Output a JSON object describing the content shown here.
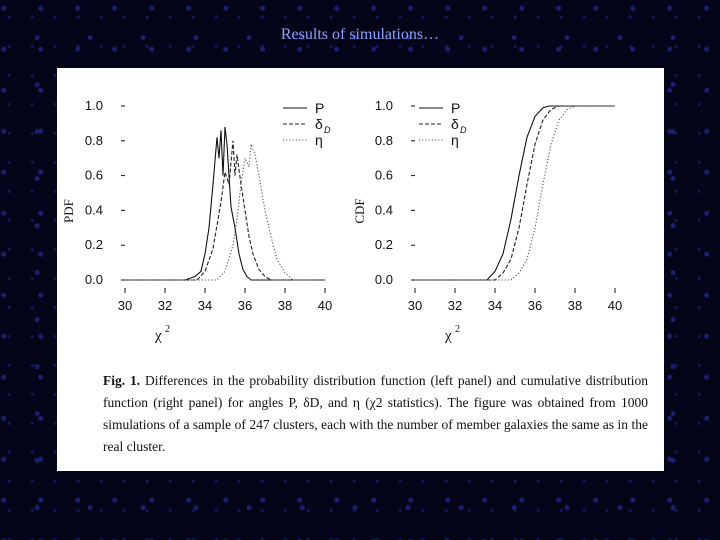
{
  "slide": {
    "title": "Results of simulations…"
  },
  "figure": {
    "caption_label": "Fig. 1.",
    "caption_text": "Differences in the probability distribution function (left panel) and cumulative distribution function (right panel) for angles P, δD, and η (χ2 statistics). The figure was obtained from 1000 simulations of a sample of 247 clusters, each with the number of member galaxies the same as in the real cluster."
  },
  "chart_data": [
    {
      "type": "line",
      "panel": "left",
      "ylabel": "PDF",
      "xlabel": "χ2",
      "xlim": [
        30,
        40
      ],
      "ylim": [
        0,
        1.0
      ],
      "x_ticks": [
        "30",
        "32",
        "34",
        "36",
        "38",
        "40"
      ],
      "y_ticks": [
        "0.0",
        "0.2",
        "0.4",
        "0.6",
        "0.8",
        "1.0"
      ],
      "legend_position": "top-right",
      "series": [
        {
          "name": "P",
          "style": "solid",
          "x": [
            30,
            33.0,
            33.5,
            33.8,
            34.0,
            34.2,
            34.4,
            34.6,
            34.7,
            34.8,
            34.9,
            35.0,
            35.1,
            35.2,
            35.3,
            35.5,
            35.7,
            35.9,
            36.1,
            36.3,
            40
          ],
          "y": [
            0,
            0,
            0.02,
            0.05,
            0.15,
            0.3,
            0.55,
            0.82,
            0.7,
            0.86,
            0.6,
            0.88,
            0.78,
            0.6,
            0.42,
            0.3,
            0.15,
            0.06,
            0.02,
            0,
            0
          ]
        },
        {
          "name": "δD",
          "style": "dashed",
          "x": [
            30,
            33.6,
            34.0,
            34.4,
            34.8,
            35.0,
            35.2,
            35.4,
            35.5,
            35.6,
            35.8,
            36.0,
            36.2,
            36.4,
            36.7,
            37.0,
            37.3,
            40
          ],
          "y": [
            0,
            0,
            0.05,
            0.18,
            0.45,
            0.62,
            0.55,
            0.8,
            0.6,
            0.72,
            0.55,
            0.4,
            0.25,
            0.15,
            0.06,
            0.02,
            0,
            0
          ]
        },
        {
          "name": "η",
          "style": "dotted",
          "x": [
            30,
            34.6,
            35.0,
            35.4,
            35.6,
            35.8,
            36.0,
            36.2,
            36.3,
            36.5,
            36.7,
            37.0,
            37.3,
            37.6,
            38.0,
            38.4,
            40
          ],
          "y": [
            0,
            0,
            0.05,
            0.2,
            0.35,
            0.55,
            0.7,
            0.65,
            0.78,
            0.72,
            0.6,
            0.4,
            0.25,
            0.12,
            0.04,
            0,
            0
          ]
        }
      ]
    },
    {
      "type": "line",
      "panel": "right",
      "ylabel": "CDF",
      "xlabel": "χ2",
      "xlim": [
        30,
        40
      ],
      "ylim": [
        0,
        1.0
      ],
      "x_ticks": [
        "30",
        "32",
        "34",
        "36",
        "38",
        "40"
      ],
      "y_ticks": [
        "0.0",
        "0.2",
        "0.4",
        "0.6",
        "0.8",
        "1.0"
      ],
      "legend_position": "top-left",
      "series": [
        {
          "name": "P",
          "style": "solid",
          "x": [
            30,
            33.6,
            34.0,
            34.4,
            34.8,
            35.2,
            35.6,
            36.0,
            36.4,
            36.7,
            37.0,
            40
          ],
          "y": [
            0,
            0,
            0.05,
            0.15,
            0.35,
            0.6,
            0.82,
            0.94,
            0.99,
            1.0,
            1.0,
            1.0
          ]
        },
        {
          "name": "δD",
          "style": "dashed",
          "x": [
            30,
            34.0,
            34.4,
            34.8,
            35.2,
            35.6,
            36.0,
            36.4,
            36.8,
            37.2,
            37.6,
            40
          ],
          "y": [
            0,
            0,
            0.04,
            0.12,
            0.3,
            0.55,
            0.78,
            0.92,
            0.98,
            1.0,
            1.0,
            1.0
          ]
        },
        {
          "name": "η",
          "style": "dotted",
          "x": [
            30,
            34.8,
            35.2,
            35.6,
            36.0,
            36.4,
            36.8,
            37.2,
            37.6,
            38.0,
            38.4,
            40
          ],
          "y": [
            0,
            0,
            0.04,
            0.12,
            0.3,
            0.55,
            0.78,
            0.92,
            0.98,
            1.0,
            1.0,
            1.0
          ]
        }
      ]
    }
  ]
}
